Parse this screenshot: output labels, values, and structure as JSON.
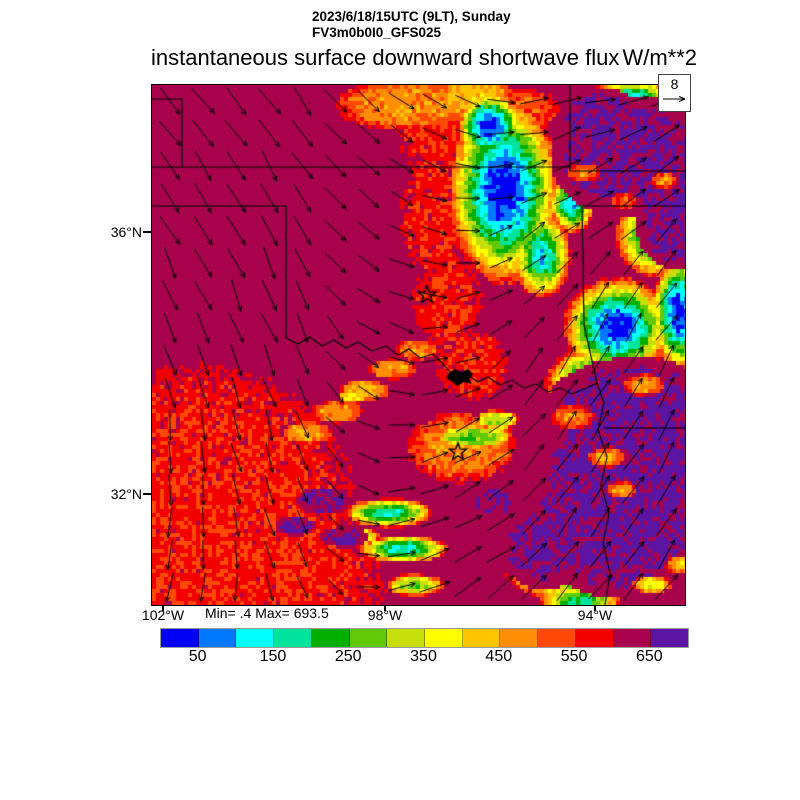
{
  "header": {
    "datetime": "2023/6/18/15UTC (9LT), Sunday",
    "model": "FV3m0b0I0_GFS025"
  },
  "title": {
    "text": "instantaneous surface downward shortwave flux",
    "units": "W/m**2"
  },
  "wind_reference": {
    "value": "8"
  },
  "axes": {
    "y_ticks": [
      {
        "label": "36°N"
      },
      {
        "label": "32°N"
      }
    ],
    "x_ticks": [
      {
        "label": "102°W"
      },
      {
        "label": "98°W"
      },
      {
        "label": "94°W"
      }
    ]
  },
  "stats": {
    "text": "Min= .4 Max= 693.5",
    "min": 0.4,
    "max": 693.5
  },
  "colorbar": {
    "tick_labels": [
      "50",
      "150",
      "250",
      "350",
      "450",
      "550",
      "650"
    ]
  },
  "chart_data": {
    "type": "heatmap",
    "title": "instantaneous surface downward shortwave flux",
    "units": "W/m**2",
    "valid_time": "2023/6/18/15UTC (9LT), Sunday",
    "model": "FV3m0b0I0_GFS025",
    "min": 0.4,
    "max": 693.5,
    "levels": [
      0,
      50,
      100,
      150,
      200,
      250,
      300,
      350,
      400,
      450,
      500,
      550,
      600,
      650,
      700
    ],
    "palette": [
      "#0000f5",
      "#0078ff",
      "#00ffff",
      "#00e39c",
      "#00af00",
      "#62c908",
      "#c6de0a",
      "#ffff00",
      "#ffc400",
      "#ff8d05",
      "#ff4905",
      "#f20000",
      "#a8024d",
      "#5c14a2"
    ],
    "x_range_labels": [
      "102°W",
      "98°W",
      "94°W"
    ],
    "y_range_labels": [
      "36°N",
      "32°N"
    ],
    "wind_reference_value": 8,
    "base_value": 622,
    "regions": [
      {
        "x": 45,
        "y": 430,
        "rx": 175,
        "ry": 165,
        "v": 562,
        "p": 3,
        "mode": "min"
      },
      {
        "x": 95,
        "y": 500,
        "rx": 150,
        "ry": 110,
        "v": 560,
        "p": 3,
        "mode": "min"
      },
      {
        "x": 20,
        "y": 360,
        "rx": 70,
        "ry": 60,
        "v": 565,
        "p": 3,
        "mode": "min"
      },
      {
        "x": 285,
        "y": 40,
        "rx": 50,
        "ry": 55,
        "v": 560,
        "p": 2,
        "mode": "min"
      },
      {
        "x": 280,
        "y": 130,
        "rx": 38,
        "ry": 75,
        "v": 562,
        "p": 2,
        "mode": "min"
      },
      {
        "x": 295,
        "y": 215,
        "rx": 40,
        "ry": 55,
        "v": 560,
        "p": 2,
        "mode": "min"
      },
      {
        "x": 320,
        "y": 280,
        "rx": 42,
        "ry": 40,
        "v": 560,
        "p": 2,
        "mode": "min"
      },
      {
        "x": 255,
        "y": 20,
        "rx": 75,
        "ry": 28,
        "v": 470,
        "p": 2,
        "mode": "min"
      },
      {
        "x": 320,
        "y": 12,
        "rx": 45,
        "ry": 22,
        "v": 430,
        "p": 2,
        "mode": "min"
      },
      {
        "x": 370,
        "y": 25,
        "rx": 40,
        "ry": 25,
        "v": 520,
        "p": 2,
        "mode": "min"
      },
      {
        "x": 155,
        "y": 348,
        "rx": 28,
        "ry": 12,
        "v": 450,
        "p": 2,
        "mode": "min"
      },
      {
        "x": 185,
        "y": 327,
        "rx": 28,
        "ry": 12,
        "v": 470,
        "p": 2,
        "mode": "min"
      },
      {
        "x": 213,
        "y": 305,
        "rx": 26,
        "ry": 11,
        "v": 430,
        "p": 2,
        "mode": "min"
      },
      {
        "x": 241,
        "y": 284,
        "rx": 26,
        "ry": 11,
        "v": 460,
        "p": 2,
        "mode": "min"
      },
      {
        "x": 265,
        "y": 265,
        "rx": 24,
        "ry": 11,
        "v": 480,
        "p": 2,
        "mode": "min"
      },
      {
        "x": 200,
        "y": 312,
        "rx": 14,
        "ry": 7,
        "v": 365,
        "p": 2,
        "mode": "min"
      },
      {
        "x": 310,
        "y": 362,
        "rx": 58,
        "ry": 38,
        "v": 478,
        "p": 2,
        "mode": "min"
      },
      {
        "x": 322,
        "y": 352,
        "rx": 40,
        "ry": 12,
        "v": 262,
        "p": 2,
        "mode": "min"
      },
      {
        "x": 345,
        "y": 335,
        "rx": 22,
        "ry": 10,
        "v": 300,
        "p": 2,
        "mode": "min"
      },
      {
        "x": 352,
        "y": 105,
        "rx": 58,
        "ry": 98,
        "v": 4,
        "p": 0.9,
        "mode": "min"
      },
      {
        "x": 338,
        "y": 42,
        "rx": 34,
        "ry": 36,
        "v": 12,
        "p": 1,
        "mode": "min"
      },
      {
        "x": 390,
        "y": 170,
        "rx": 30,
        "ry": 45,
        "v": 120,
        "p": 1,
        "mode": "min"
      },
      {
        "x": 420,
        "y": 118,
        "rx": 24,
        "ry": 32,
        "v": 110,
        "p": 1,
        "mode": "min"
      },
      {
        "x": 447,
        "y": 62,
        "rx": 26,
        "ry": 26,
        "v": 140,
        "p": 1,
        "mode": "min"
      },
      {
        "x": 480,
        "y": 18,
        "rx": 48,
        "ry": 26,
        "v": 100,
        "p": 1,
        "mode": "min"
      },
      {
        "x": 522,
        "y": 58,
        "rx": 30,
        "ry": 36,
        "v": 120,
        "p": 1,
        "mode": "min"
      },
      {
        "x": 465,
        "y": 242,
        "rx": 56,
        "ry": 52,
        "v": 4,
        "p": 0.9,
        "mode": "min"
      },
      {
        "x": 527,
        "y": 228,
        "rx": 28,
        "ry": 60,
        "v": 25,
        "p": 1,
        "mode": "min"
      },
      {
        "x": 502,
        "y": 152,
        "rx": 40,
        "ry": 42,
        "v": 210,
        "p": 1.2,
        "mode": "min"
      },
      {
        "x": 438,
        "y": 300,
        "rx": 46,
        "ry": 40,
        "v": 140,
        "p": 1,
        "mode": "min"
      },
      {
        "x": 472,
        "y": 350,
        "rx": 30,
        "ry": 25,
        "v": 240,
        "p": 1,
        "mode": "min"
      },
      {
        "x": 237,
        "y": 428,
        "rx": 46,
        "ry": 15,
        "v": 170,
        "p": 1.2,
        "mode": "min"
      },
      {
        "x": 252,
        "y": 464,
        "rx": 46,
        "ry": 14,
        "v": 140,
        "p": 1.2,
        "mode": "min"
      },
      {
        "x": 263,
        "y": 500,
        "rx": 30,
        "ry": 12,
        "v": 270,
        "p": 1.2,
        "mode": "min"
      },
      {
        "x": 208,
        "y": 452,
        "rx": 22,
        "ry": 10,
        "v": 300,
        "p": 1.2,
        "mode": "min"
      },
      {
        "x": 408,
        "y": 488,
        "rx": 56,
        "ry": 26,
        "v": 140,
        "p": 1,
        "mode": "min"
      },
      {
        "x": 428,
        "y": 516,
        "rx": 42,
        "ry": 16,
        "v": 170,
        "p": 1,
        "mode": "min"
      },
      {
        "x": 368,
        "y": 458,
        "rx": 20,
        "ry": 11,
        "v": 340,
        "p": 1.5,
        "mode": "min"
      },
      {
        "x": 470,
        "y": 470,
        "rx": 24,
        "ry": 12,
        "v": 330,
        "p": 1.2,
        "mode": "min"
      },
      {
        "x": 533,
        "y": 262,
        "rx": 24,
        "ry": 55,
        "v": 500,
        "p": 2,
        "mode": "min"
      },
      {
        "x": 533,
        "y": 440,
        "rx": 20,
        "ry": 45,
        "v": 520,
        "p": 2,
        "mode": "min"
      },
      {
        "x": 478,
        "y": 72,
        "rx": 80,
        "ry": 62,
        "v": 668,
        "p": 1.5,
        "mode": "max"
      },
      {
        "x": 525,
        "y": 135,
        "rx": 42,
        "ry": 50,
        "v": 666,
        "p": 1.5,
        "mode": "max"
      },
      {
        "x": 448,
        "y": 30,
        "rx": 42,
        "ry": 28,
        "v": 662,
        "p": 1.5,
        "mode": "max"
      },
      {
        "x": 482,
        "y": 330,
        "rx": 92,
        "ry": 58,
        "v": 668,
        "p": 1.5,
        "mode": "max"
      },
      {
        "x": 470,
        "y": 432,
        "rx": 95,
        "ry": 82,
        "v": 670,
        "p": 1.5,
        "mode": "max"
      },
      {
        "x": 522,
        "y": 382,
        "rx": 52,
        "ry": 80,
        "v": 668,
        "p": 1.5,
        "mode": "max"
      },
      {
        "x": 428,
        "y": 388,
        "rx": 40,
        "ry": 42,
        "v": 664,
        "p": 1.5,
        "mode": "max"
      },
      {
        "x": 392,
        "y": 462,
        "rx": 46,
        "ry": 42,
        "v": 664,
        "p": 1.5,
        "mode": "max"
      },
      {
        "x": 172,
        "y": 416,
        "rx": 28,
        "ry": 14,
        "v": 660,
        "p": 2,
        "mode": "max"
      },
      {
        "x": 143,
        "y": 441,
        "rx": 20,
        "ry": 10,
        "v": 658,
        "p": 2,
        "mode": "max"
      },
      {
        "x": 192,
        "y": 452,
        "rx": 24,
        "ry": 11,
        "v": 660,
        "p": 2,
        "mode": "max"
      },
      {
        "x": 345,
        "y": 418,
        "rx": 25,
        "ry": 15,
        "v": 658,
        "p": 2,
        "mode": "max"
      },
      {
        "x": 420,
        "y": 332,
        "rx": 24,
        "ry": 13,
        "v": 470,
        "p": 1.5,
        "mode": "min"
      },
      {
        "x": 455,
        "y": 372,
        "rx": 20,
        "ry": 11,
        "v": 440,
        "p": 1.5,
        "mode": "min"
      },
      {
        "x": 492,
        "y": 300,
        "rx": 22,
        "ry": 12,
        "v": 460,
        "p": 1.5,
        "mode": "min"
      },
      {
        "x": 432,
        "y": 88,
        "rx": 18,
        "ry": 10,
        "v": 480,
        "p": 1.5,
        "mode": "min"
      },
      {
        "x": 472,
        "y": 116,
        "rx": 15,
        "ry": 9,
        "v": 500,
        "p": 1.5,
        "mode": "min"
      },
      {
        "x": 512,
        "y": 96,
        "rx": 14,
        "ry": 9,
        "v": 470,
        "p": 1.5,
        "mode": "min"
      },
      {
        "x": 530,
        "y": 480,
        "rx": 18,
        "ry": 10,
        "v": 420,
        "p": 1.5,
        "mode": "min"
      },
      {
        "x": 470,
        "y": 405,
        "rx": 16,
        "ry": 9,
        "v": 450,
        "p": 1.5,
        "mode": "min"
      },
      {
        "x": 500,
        "y": 500,
        "rx": 20,
        "ry": 10,
        "v": 360,
        "p": 1.5,
        "mode": "min"
      }
    ],
    "wind_grid": {
      "u": [
        [
          0.65,
          0.6,
          0.7,
          0.9,
          0.9
        ],
        [
          0.5,
          0.45,
          0.7,
          0.7,
          0.7
        ],
        [
          0.3,
          0.35,
          0.8,
          0.5,
          0.5
        ],
        [
          0.0,
          0.3,
          0.85,
          0.6,
          0.45
        ],
        [
          -0.35,
          0.2,
          0.9,
          0.75,
          0.55
        ]
      ],
      "v": [
        [
          0.7,
          0.8,
          0.5,
          -0.1,
          -0.3
        ],
        [
          0.85,
          0.9,
          0.3,
          -0.5,
          -0.6
        ],
        [
          0.9,
          0.9,
          0.1,
          -0.8,
          -0.85
        ],
        [
          0.95,
          0.85,
          -0.15,
          -0.8,
          -0.9
        ],
        [
          0.85,
          0.8,
          -0.35,
          -0.7,
          -0.8
        ]
      ]
    },
    "overlays": {
      "borders": [
        [
          [
            0,
            14
          ],
          [
            30,
            14
          ],
          [
            30,
            82
          ]
        ],
        [
          [
            0,
            82
          ],
          [
            418,
            82
          ]
        ],
        [
          [
            418,
            0
          ],
          [
            418,
            86
          ],
          [
            533,
            86
          ]
        ],
        [
          [
            0,
            121
          ],
          [
            134,
            121
          ],
          [
            134,
            253
          ]
        ],
        [
          [
            422,
            121
          ],
          [
            533,
            121
          ]
        ],
        [
          [
            430,
            121
          ],
          [
            432,
            240
          ],
          [
            445,
            298
          ]
        ],
        [
          [
            452,
            343
          ],
          [
            533,
            343
          ]
        ]
      ],
      "rivers": [
        [
          [
            134,
            253
          ],
          [
            146,
            259
          ],
          [
            158,
            252
          ],
          [
            170,
            261
          ],
          [
            182,
            255
          ],
          [
            194,
            263
          ],
          [
            206,
            257
          ],
          [
            220,
            266
          ],
          [
            234,
            261
          ],
          [
            246,
            270
          ],
          [
            257,
            264
          ],
          [
            268,
            273
          ],
          [
            281,
            269
          ],
          [
            292,
            280
          ],
          [
            300,
            289
          ],
          [
            308,
            293
          ],
          [
            316,
            290
          ],
          [
            326,
            297
          ],
          [
            336,
            292
          ],
          [
            348,
            300
          ],
          [
            360,
            295
          ],
          [
            372,
            303
          ],
          [
            384,
            299
          ],
          [
            396,
            307
          ],
          [
            408,
            303
          ],
          [
            420,
            309
          ],
          [
            432,
            304
          ],
          [
            445,
            298
          ]
        ],
        [
          [
            445,
            298
          ],
          [
            452,
            318
          ],
          [
            446,
            345
          ],
          [
            455,
            372
          ],
          [
            449,
            400
          ],
          [
            457,
            428
          ],
          [
            451,
            458
          ],
          [
            458,
            488
          ],
          [
            453,
            520
          ]
        ]
      ],
      "lake": [
        [
          297,
          288
        ],
        [
          303,
          284
        ],
        [
          310,
          287
        ],
        [
          316,
          284
        ],
        [
          321,
          289
        ],
        [
          317,
          294
        ],
        [
          320,
          299
        ],
        [
          312,
          297
        ],
        [
          305,
          301
        ],
        [
          299,
          296
        ],
        [
          294,
          293
        ]
      ],
      "stars": [
        {
          "x": 275,
          "y": 210
        },
        {
          "x": 306,
          "y": 367
        }
      ]
    }
  }
}
